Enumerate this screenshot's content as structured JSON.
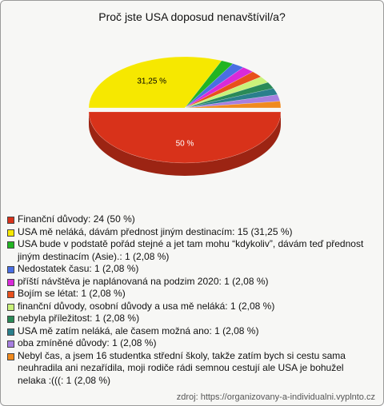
{
  "chart_data": {
    "type": "pie",
    "title": "Proč jste USA doposud nenavštívil/a?",
    "categories": [
      "Finanční důvody: 24 (50 %)",
      "USA mě neláká, dávám přednost jiným destinacím: 15 (31,25 %)",
      "USA bude v podstatě pořád stejné a jet tam mohu “kdykoliv”, dávám teď přednost jiným destinacím (Asie).: 1 (2,08 %)",
      "Nedostatek času: 1 (2,08 %)",
      "příští návštěva je naplánovaná na podzim 2020: 1 (2,08 %)",
      "Bojím se létat: 1 (2,08 %)",
      "finanční důvody, osobní důvody a usa mě neláká: 1 (2,08 %)",
      "nebyla příležitost: 1 (2,08 %)",
      "USA mě zatím neláká, ale časem možná ano: 1 (2,08 %)",
      "oba zmíněné důvody: 1 (2,08 %)",
      "Nebyl čas, a jsem 16 studentka střední školy, takže zatím bych si cestu sama neuhradila ani nezařídila, moji rodiče rádi semnou cestují ale USA je bohužel nelaka :(((: 1 (2,08 %)"
    ],
    "values": [
      50,
      31.25,
      2.08,
      2.08,
      2.08,
      2.08,
      2.08,
      2.08,
      2.08,
      2.08,
      2.08
    ],
    "value_labels": [
      "50 %",
      "31,25 %",
      null,
      null,
      null,
      null,
      null,
      null,
      null,
      null,
      null
    ],
    "colors": [
      "#d8321a",
      "#f6e800",
      "#22b522",
      "#4a6fe3",
      "#d92ad9",
      "#e8501c",
      "#c9f27a",
      "#2a8a57",
      "#2a7f8c",
      "#a77fe0",
      "#f08a1e"
    ],
    "source": "zdroj: https://organizovany-a-individualni.vyplnto.cz"
  }
}
